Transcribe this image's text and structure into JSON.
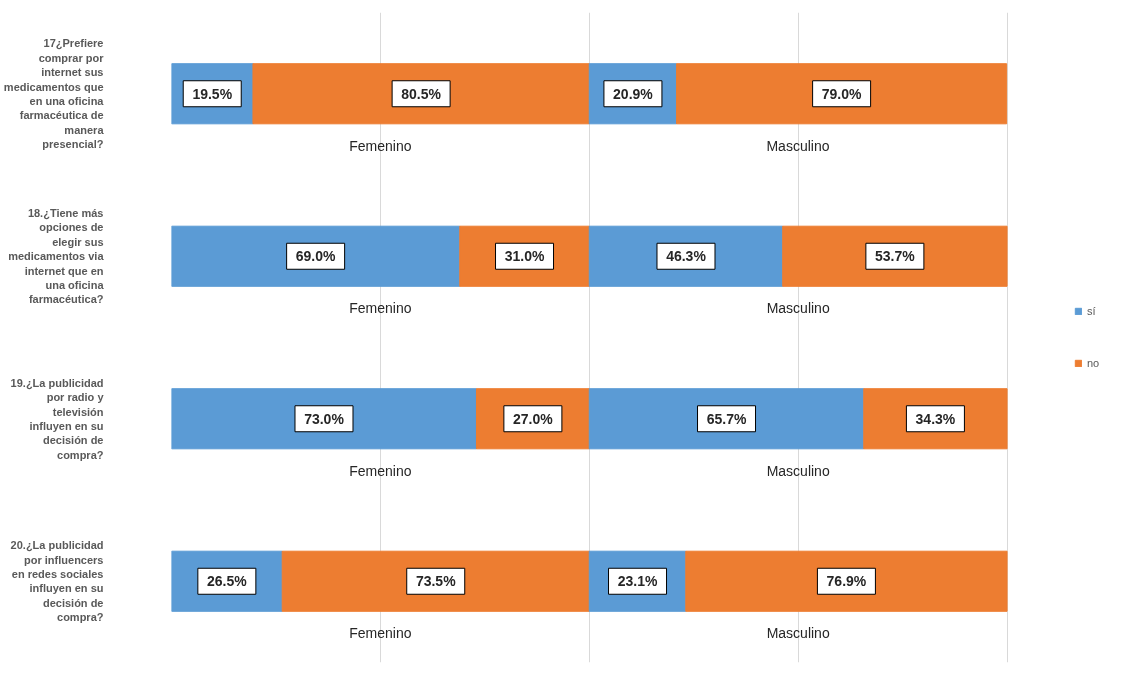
{
  "chart_data": {
    "type": "bar",
    "orientation": "horizontal",
    "stacked": true,
    "categories": [
      "17¿Prefiere comprar por internet sus medicamentos que en una oficina farmacéutica de manera presencial?",
      "18.¿Tiene más opciones de elegir sus medicamentos via internet que en una oficina farmacéutica?",
      "19.¿La publicidad por radio y televisión influyen en su decisión de compra?",
      "20.¿La publicidad por influencers en redes sociales influyen en su decisión de compra?"
    ],
    "series": [
      {
        "name": "sí",
        "color": "#5b9bd5",
        "values": [
          19.5,
          69.0,
          73.0,
          26.5
        ],
        "value_labels": [
          "19.5%",
          "69.0%",
          "73.0%",
          "26.5%"
        ]
      },
      {
        "name": "no",
        "color": "#ed7d31",
        "values": [
          80.5,
          31.0,
          27.0,
          73.5
        ],
        "value_labels": [
          "80.5%",
          "31.0%",
          "27.0%",
          "73.5%"
        ]
      },
      {
        "color": "#5b9bd5",
        "values": [
          20.9,
          46.3,
          65.7,
          23.1
        ],
        "value_labels": [
          "20.9%",
          "46.3%",
          "65.7%",
          "23.1%"
        ]
      },
      {
        "color": "#ed7d31",
        "values": [
          79.0,
          53.7,
          34.3,
          76.9
        ],
        "value_labels": [
          "79.0%",
          "53.7%",
          "34.3%",
          "76.9%"
        ]
      }
    ],
    "tick_labels": "y",
    "grid": "x",
    "legend": "right",
    "annotations": [
      "Femenino",
      "Masculino",
      "Femenino",
      "Masculino",
      "Femenino",
      "Masculino",
      "Femenino",
      "Masculino"
    ]
  }
}
